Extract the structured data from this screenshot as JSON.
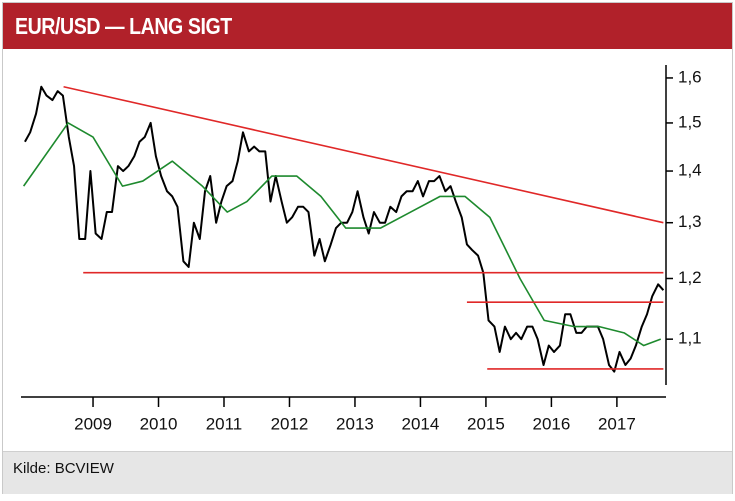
{
  "chart_data": {
    "type": "line",
    "title": "EUR/USD — LANG SIGT",
    "source": "Kilde: BCVIEW",
    "ylog": true,
    "grid": false,
    "xlim": [
      2007.9,
      2017.75
    ],
    "xticks": [
      2009,
      2010,
      2011,
      2012,
      2013,
      2014,
      2015,
      2016,
      2017
    ],
    "ylim": [
      1.03,
      1.63
    ],
    "yticks": [
      {
        "value": 1.1,
        "label": "1,1"
      },
      {
        "value": 1.2,
        "label": "1,2"
      },
      {
        "value": 1.3,
        "label": "1,3"
      },
      {
        "value": 1.4,
        "label": "1,4"
      },
      {
        "value": 1.5,
        "label": "1,5"
      },
      {
        "value": 1.6,
        "label": "1,6"
      }
    ],
    "series": [
      {
        "color": "#000000",
        "x": [
          2007.96,
          2008.04,
          2008.13,
          2008.21,
          2008.29,
          2008.38,
          2008.46,
          2008.54,
          2008.63,
          2008.71,
          2008.79,
          2008.88,
          2008.96,
          2009.04,
          2009.13,
          2009.21,
          2009.29,
          2009.38,
          2009.46,
          2009.54,
          2009.63,
          2009.71,
          2009.79,
          2009.88,
          2009.96,
          2010.04,
          2010.13,
          2010.21,
          2010.29,
          2010.38,
          2010.46,
          2010.54,
          2010.63,
          2010.71,
          2010.79,
          2010.88,
          2010.96,
          2011.04,
          2011.13,
          2011.21,
          2011.29,
          2011.38,
          2011.46,
          2011.54,
          2011.63,
          2011.71,
          2011.79,
          2011.88,
          2011.96,
          2012.04,
          2012.13,
          2012.21,
          2012.29,
          2012.38,
          2012.46,
          2012.54,
          2012.63,
          2012.71,
          2012.79,
          2012.88,
          2012.96,
          2013.04,
          2013.13,
          2013.21,
          2013.29,
          2013.38,
          2013.46,
          2013.54,
          2013.63,
          2013.71,
          2013.79,
          2013.88,
          2013.96,
          2014.04,
          2014.13,
          2014.21,
          2014.29,
          2014.38,
          2014.46,
          2014.54,
          2014.63,
          2014.71,
          2014.79,
          2014.88,
          2014.96,
          2015.04,
          2015.13,
          2015.21,
          2015.29,
          2015.38,
          2015.46,
          2015.54,
          2015.63,
          2015.71,
          2015.79,
          2015.88,
          2015.96,
          2016.04,
          2016.13,
          2016.21,
          2016.29,
          2016.38,
          2016.46,
          2016.54,
          2016.63,
          2016.71,
          2016.79,
          2016.88,
          2016.96,
          2017.04,
          2017.13,
          2017.21,
          2017.29,
          2017.38,
          2017.46,
          2017.54,
          2017.63,
          2017.71
        ],
        "values": [
          1.46,
          1.48,
          1.52,
          1.58,
          1.56,
          1.55,
          1.57,
          1.56,
          1.47,
          1.41,
          1.27,
          1.27,
          1.4,
          1.28,
          1.27,
          1.32,
          1.32,
          1.41,
          1.4,
          1.41,
          1.43,
          1.46,
          1.47,
          1.5,
          1.43,
          1.39,
          1.36,
          1.35,
          1.33,
          1.23,
          1.22,
          1.3,
          1.27,
          1.36,
          1.39,
          1.3,
          1.34,
          1.37,
          1.38,
          1.42,
          1.48,
          1.44,
          1.45,
          1.44,
          1.44,
          1.34,
          1.39,
          1.34,
          1.3,
          1.31,
          1.33,
          1.33,
          1.32,
          1.24,
          1.27,
          1.23,
          1.26,
          1.29,
          1.3,
          1.3,
          1.32,
          1.36,
          1.31,
          1.28,
          1.32,
          1.3,
          1.3,
          1.33,
          1.32,
          1.35,
          1.36,
          1.36,
          1.38,
          1.35,
          1.38,
          1.38,
          1.39,
          1.36,
          1.37,
          1.34,
          1.31,
          1.26,
          1.25,
          1.24,
          1.21,
          1.13,
          1.12,
          1.08,
          1.12,
          1.1,
          1.11,
          1.1,
          1.12,
          1.12,
          1.1,
          1.06,
          1.09,
          1.08,
          1.09,
          1.14,
          1.14,
          1.11,
          1.11,
          1.12,
          1.12,
          1.12,
          1.1,
          1.06,
          1.05,
          1.08,
          1.06,
          1.07,
          1.09,
          1.12,
          1.14,
          1.17,
          1.19,
          1.18
        ]
      },
      {
        "color": "#1e8a2e",
        "x": [
          2007.94,
          2008.62,
          2009.0,
          2009.45,
          2009.76,
          2010.21,
          2010.67,
          2011.05,
          2011.35,
          2011.73,
          2012.11,
          2012.48,
          2012.86,
          2013.39,
          2013.85,
          2014.3,
          2014.68,
          2015.06,
          2015.52,
          2015.89,
          2016.35,
          2016.73,
          2017.11,
          2017.41,
          2017.67
        ],
        "values": [
          1.37,
          1.5,
          1.47,
          1.37,
          1.38,
          1.42,
          1.37,
          1.32,
          1.34,
          1.39,
          1.39,
          1.35,
          1.29,
          1.29,
          1.32,
          1.35,
          1.35,
          1.31,
          1.2,
          1.13,
          1.12,
          1.12,
          1.11,
          1.09,
          1.1
        ]
      },
      {
        "color": "#e02828",
        "x": [
          2008.55,
          2017.71
        ],
        "values": [
          1.58,
          1.3
        ]
      },
      {
        "color": "#e02828",
        "x": [
          2008.85,
          2017.71
        ],
        "values": [
          1.21,
          1.21
        ]
      },
      {
        "color": "#e02828",
        "x": [
          2014.71,
          2017.71
        ],
        "values": [
          1.16,
          1.16
        ]
      },
      {
        "color": "#e02828",
        "x": [
          2015.02,
          2017.71
        ],
        "values": [
          1.054,
          1.054
        ]
      }
    ]
  }
}
